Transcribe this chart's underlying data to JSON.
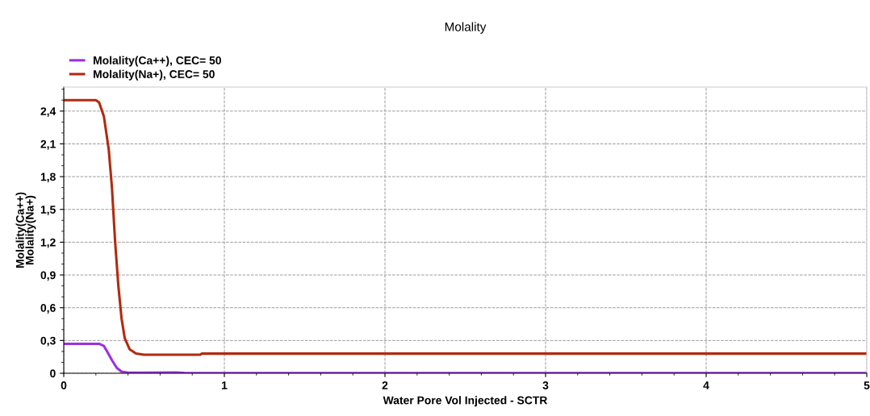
{
  "chart_data": {
    "type": "line",
    "title": "Molality",
    "xlabel": "Water Pore Vol Injected - SCTR",
    "ylabel": "Molality(Ca++)\nMolality(Na+)",
    "xlim": [
      0,
      5
    ],
    "xticks": [
      0,
      1,
      2,
      3,
      4,
      5
    ],
    "ylim": [
      0,
      2.62
    ],
    "yticks": [
      {
        "value": 0,
        "label": "0"
      },
      {
        "value": 0.3,
        "label": "0,3"
      },
      {
        "value": 0.6,
        "label": "0,6"
      },
      {
        "value": 0.9,
        "label": "0,9"
      },
      {
        "value": 1.2,
        "label": "1,2"
      },
      {
        "value": 1.5,
        "label": "1,5"
      },
      {
        "value": 1.8,
        "label": "1,8"
      },
      {
        "value": 2.1,
        "label": "2,1"
      },
      {
        "value": 2.4,
        "label": "2,4"
      }
    ],
    "grid": true,
    "legend": "top left",
    "line_style": "solid",
    "marker": "none",
    "series": [
      {
        "name": "Molality(Ca++), CEC= 50",
        "color": "#9b30e0",
        "x": [
          0,
          0.22,
          0.25,
          0.27,
          0.3,
          0.33,
          0.36,
          0.4,
          0.5,
          0.7,
          0.75,
          1,
          5
        ],
        "values": [
          0.27,
          0.27,
          0.25,
          0.2,
          0.12,
          0.05,
          0.015,
          0.005,
          0.005,
          0.008,
          0.003,
          0.002,
          0.002
        ]
      },
      {
        "name": "Molality(Na+), CEC= 50",
        "color": "#b22a0e",
        "x": [
          0,
          0.2,
          0.22,
          0.25,
          0.28,
          0.3,
          0.32,
          0.34,
          0.36,
          0.38,
          0.41,
          0.45,
          0.5,
          0.85,
          0.86,
          5
        ],
        "values": [
          2.5,
          2.5,
          2.48,
          2.35,
          2.05,
          1.7,
          1.2,
          0.8,
          0.5,
          0.32,
          0.22,
          0.18,
          0.17,
          0.17,
          0.18,
          0.18
        ]
      }
    ]
  }
}
